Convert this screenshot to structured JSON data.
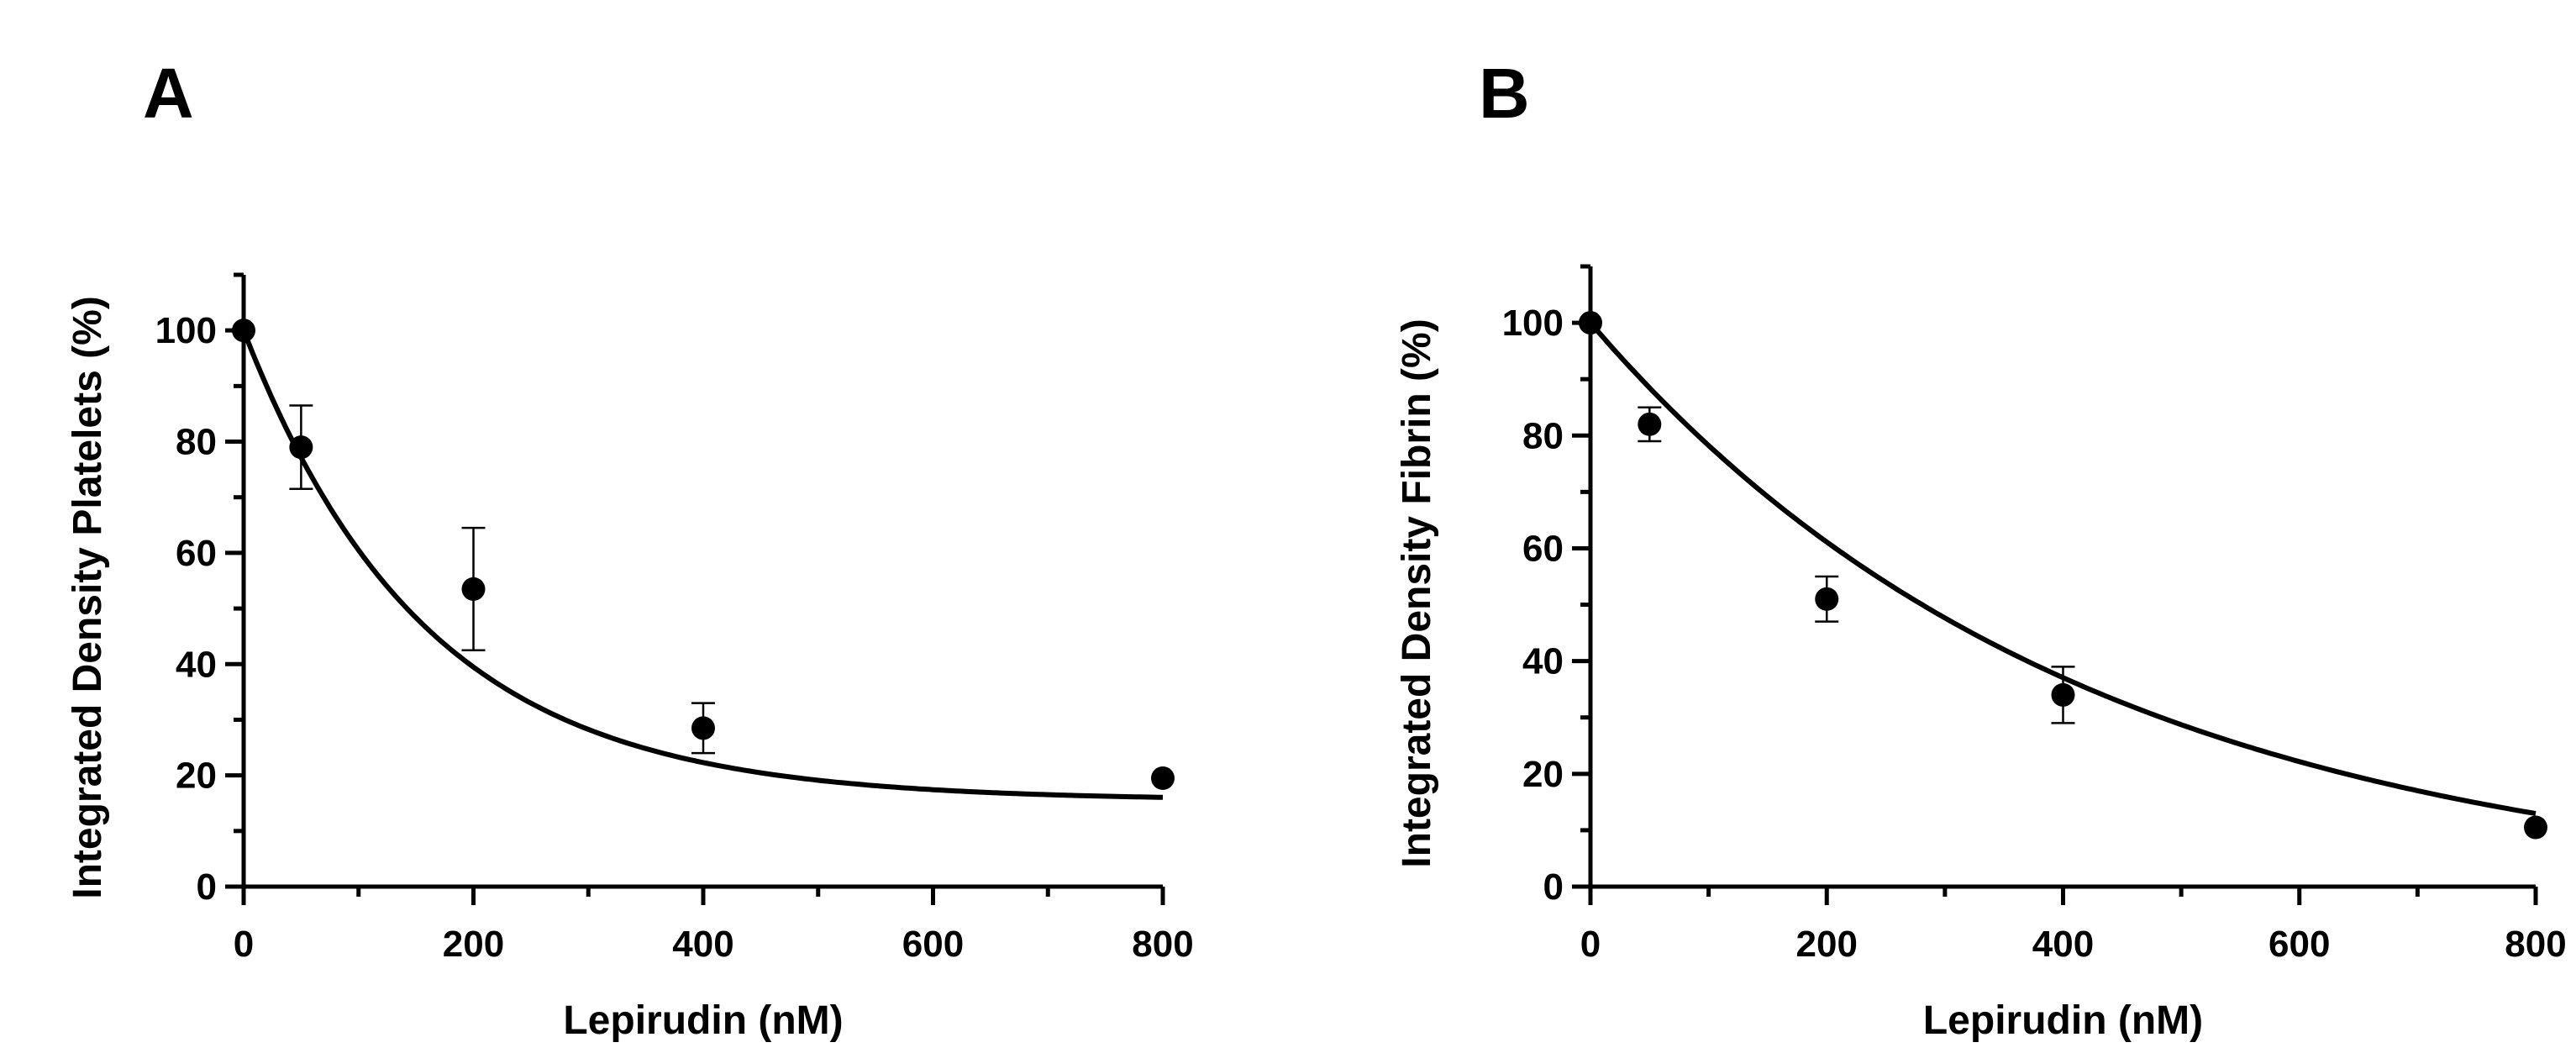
{
  "chart_data": [
    {
      "panel": "A",
      "type": "scatter",
      "title": "",
      "xlabel": "Lepirudin (nM)",
      "ylabel": "Integrated Density Platelets (%)",
      "xlim": [
        0,
        800
      ],
      "ylim": [
        0,
        110
      ],
      "xticks": [
        0,
        200,
        400,
        600,
        800
      ],
      "yticks": [
        0,
        20,
        40,
        60,
        80,
        100
      ],
      "grid": false,
      "legend": "none",
      "series": [
        {
          "name": "Platelets",
          "x": [
            0,
            50,
            200,
            400,
            800
          ],
          "y": [
            100,
            79,
            53.5,
            28.5,
            19.5
          ],
          "error": [
            0,
            7.5,
            11,
            4.5,
            0
          ]
        }
      ],
      "fit": {
        "type": "one-phase decay",
        "y0": 100,
        "plateau": 15.5,
        "k": 0.0063
      }
    },
    {
      "panel": "B",
      "type": "scatter",
      "title": "",
      "xlabel": "Lepirudin (nM)",
      "ylabel": "Integrated  Density Fibrin (%)",
      "xlim": [
        0,
        800
      ],
      "ylim": [
        0,
        110
      ],
      "xticks": [
        0,
        200,
        400,
        600,
        800
      ],
      "yticks": [
        0,
        20,
        40,
        60,
        80,
        100
      ],
      "grid": false,
      "legend": "none",
      "series": [
        {
          "name": "Fibrin",
          "x": [
            0,
            50,
            200,
            400,
            800
          ],
          "y": [
            100,
            82,
            51,
            34,
            10.5
          ],
          "error": [
            0,
            3,
            4,
            5,
            0
          ]
        }
      ],
      "fit": {
        "type": "one-phase decay",
        "y0": 100,
        "plateau": -2,
        "k": 0.0024
      }
    }
  ]
}
